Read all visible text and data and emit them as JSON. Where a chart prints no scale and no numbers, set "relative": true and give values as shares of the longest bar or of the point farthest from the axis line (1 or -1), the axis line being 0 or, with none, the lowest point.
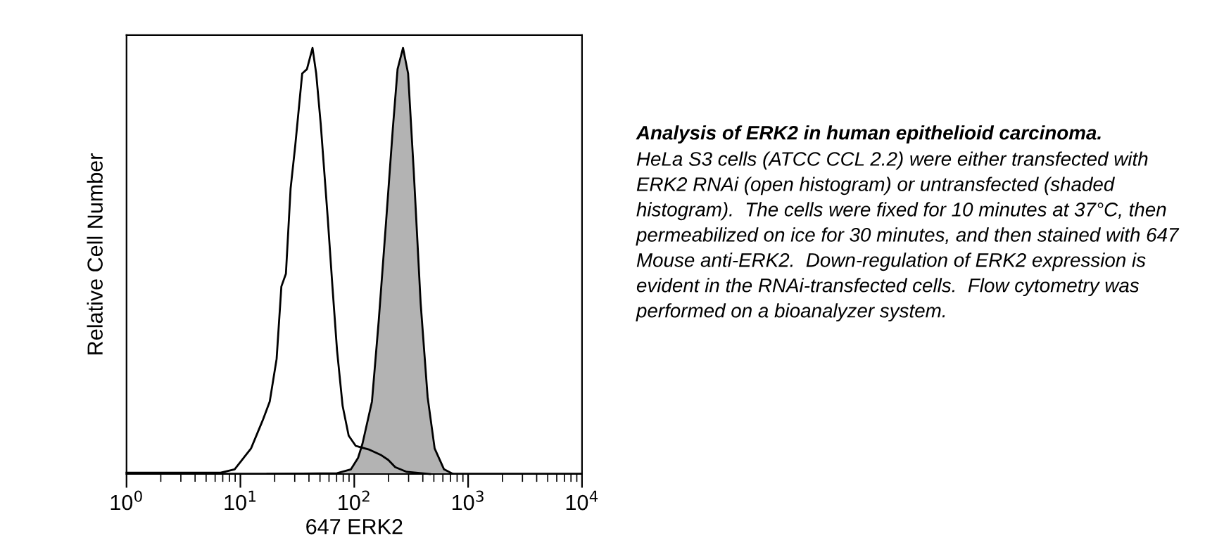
{
  "chart_data": {
    "type": "area",
    "relative": true,
    "log": "x",
    "xlabel": "647 ERK2",
    "ylabel": "Relative Cell Number",
    "xlim": [
      1,
      10000
    ],
    "xticks": [
      {
        "value": 1,
        "label": "10$^{0}$"
      },
      {
        "value": 10,
        "label": "10$^{1}$"
      },
      {
        "value": 100,
        "label": "10$^{2}$"
      },
      {
        "value": 1000,
        "label": "10$^{3}$"
      },
      {
        "value": 10000,
        "label": "10$^{4}$"
      }
    ],
    "tick_labels": "x",
    "grid": false,
    "legend": false,
    "series": [
      {
        "color": "#b3b3b3",
        "x": [
          17.3,
          70.6,
          93.5,
          108,
          118,
          143,
          164,
          190,
          218,
          240,
          268,
          297,
          333,
          383,
          441,
          508,
          614,
          740
        ],
        "values": [
          0,
          0.002,
          0.011,
          0.038,
          0.071,
          0.17,
          0.36,
          0.59,
          0.81,
          0.95,
          1.0,
          0.94,
          0.71,
          0.4,
          0.18,
          0.06,
          0.011,
          0
        ]
      },
      {
        "type": "line",
        "color": "#000000",
        "x": [
          1,
          6.7,
          8.9,
          12.4,
          15.7,
          18.1,
          20.8,
          22.9,
          25.1,
          27.6,
          30.3,
          34.9,
          38.4,
          43,
          46.3,
          50.8,
          58.5,
          64.3,
          70.6,
          79,
          89.3,
          103,
          136,
          173,
          199,
          229,
          289,
          462
        ],
        "values": [
          0.003,
          0.003,
          0.011,
          0.06,
          0.126,
          0.17,
          0.27,
          0.44,
          0.47,
          0.67,
          0.77,
          0.94,
          0.95,
          1.0,
          0.94,
          0.82,
          0.6,
          0.44,
          0.29,
          0.16,
          0.09,
          0.066,
          0.057,
          0.044,
          0.033,
          0.016,
          0.005,
          0
        ]
      }
    ],
    "annotations": [
      "Analysis of ERK2 in human epithelioid carcinoma.",
      "HeLa S3 cells (ATCC CCL 2.2) were either transfected with ERK2 RNAi (open histogram) or untransfected (shaded histogram).  The cells were fixed for 10 minutes at 37°C, then permeabilized on ice for 30 minutes, and then stained with 647 Mouse anti-ERK2.  Down-regulation of ERK2 expression is evident in the RNAi-transfected cells.  Flow cytometry was performed on a bioanalyzer system."
    ]
  }
}
